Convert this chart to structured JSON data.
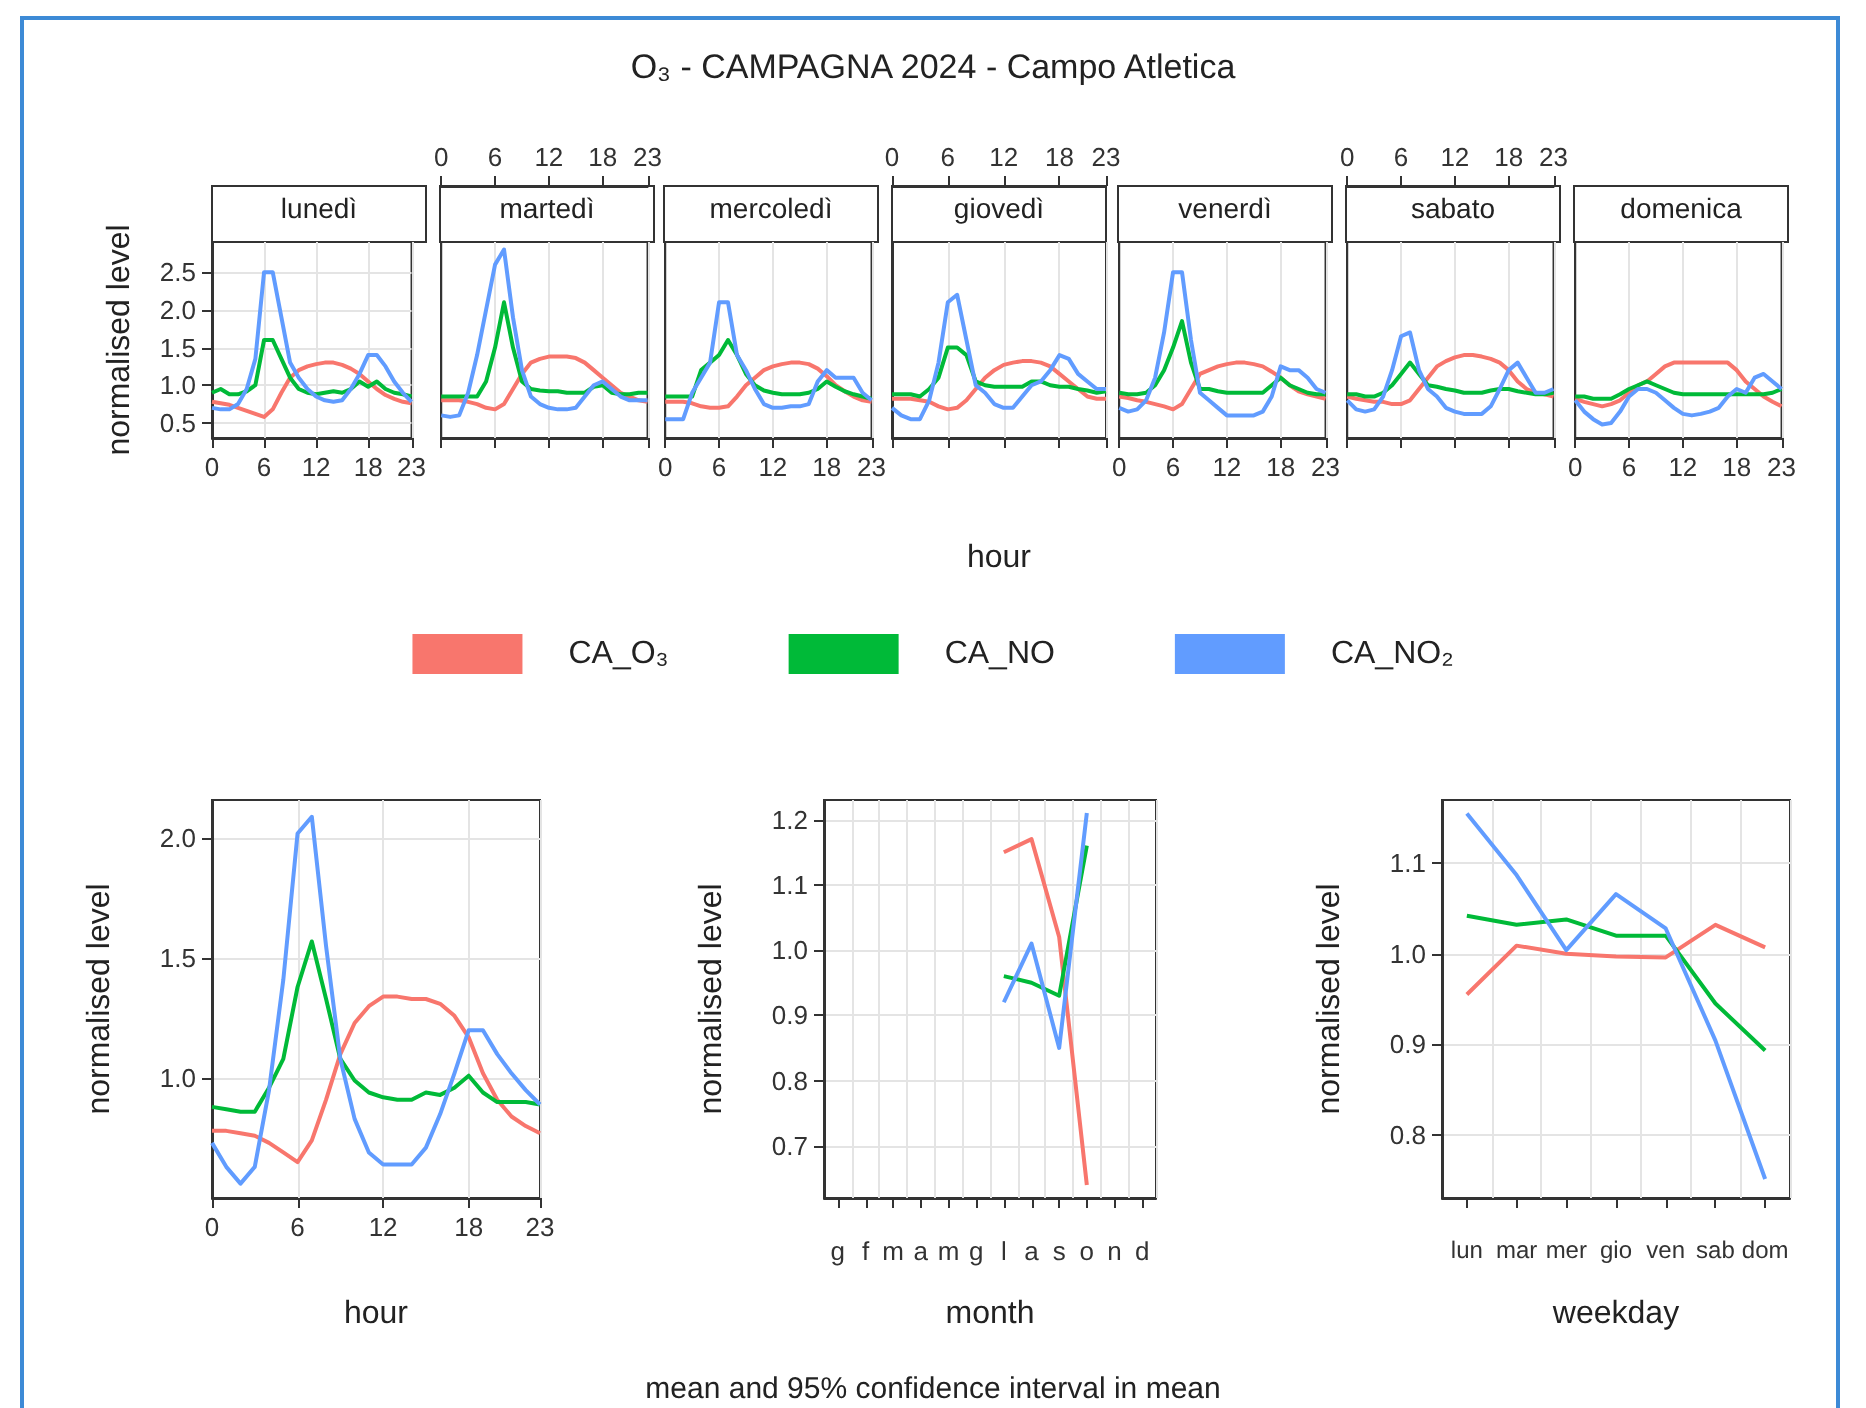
{
  "chart_data": [
    {
      "type": "other",
      "title": "O₃ - CAMPAGNA 2024 - Campo Atletica",
      "annotations": [
        "mean and 95% confidence interval in mean"
      ]
    },
    {
      "type": "line",
      "title": "lunedì",
      "ylabel": "normalised level",
      "x": [
        0,
        1,
        2,
        3,
        4,
        5,
        6,
        7,
        8,
        9,
        10,
        11,
        12,
        13,
        14,
        15,
        16,
        17,
        18,
        19,
        20,
        21,
        22,
        23
      ],
      "xlim": [
        0,
        23
      ],
      "xticks": [
        0,
        6,
        12,
        18,
        23
      ],
      "ylim": [
        0.3,
        2.9
      ],
      "yticks": [
        {
          "value": 0.5,
          "label": "0.5"
        },
        {
          "value": 1,
          "label": "1.0"
        },
        {
          "value": 1.5,
          "label": "1.5"
        },
        {
          "value": 2,
          "label": "2.0"
        },
        {
          "value": 2.5,
          "label": "2.5"
        }
      ],
      "grid": true,
      "series": [
        {
          "color": "#f8766d",
          "values": [
            0.78,
            0.76,
            0.74,
            0.7,
            0.66,
            0.62,
            0.58,
            0.68,
            0.9,
            1.1,
            1.2,
            1.25,
            1.28,
            1.3,
            1.3,
            1.27,
            1.22,
            1.15,
            1.05,
            0.95,
            0.87,
            0.82,
            0.78,
            0.76
          ]
        },
        {
          "color": "#00ba38",
          "values": [
            0.9,
            0.95,
            0.88,
            0.88,
            0.92,
            1.0,
            1.6,
            1.6,
            1.35,
            1.1,
            0.95,
            0.9,
            0.88,
            0.9,
            0.92,
            0.9,
            0.95,
            1.05,
            0.98,
            1.05,
            0.95,
            0.9,
            0.88,
            0.85
          ]
        },
        {
          "color": "#619cff",
          "values": [
            0.7,
            0.68,
            0.68,
            0.75,
            0.95,
            1.35,
            2.5,
            2.5,
            1.9,
            1.3,
            1.1,
            0.95,
            0.85,
            0.8,
            0.78,
            0.8,
            0.95,
            1.15,
            1.4,
            1.4,
            1.25,
            1.05,
            0.9,
            0.78
          ]
        }
      ]
    },
    {
      "type": "line",
      "title": "martedì",
      "x": [
        0,
        1,
        2,
        3,
        4,
        5,
        6,
        7,
        8,
        9,
        10,
        11,
        12,
        13,
        14,
        15,
        16,
        17,
        18,
        19,
        20,
        21,
        22,
        23
      ],
      "xlim": [
        0,
        23
      ],
      "xticks": [
        0,
        6,
        12,
        18,
        23
      ],
      "tick_labels": "x",
      "ylim": [
        0.3,
        2.9
      ],
      "grid": true,
      "series": [
        {
          "color": "#f8766d",
          "values": [
            0.8,
            0.8,
            0.8,
            0.78,
            0.75,
            0.7,
            0.68,
            0.75,
            0.95,
            1.15,
            1.3,
            1.35,
            1.38,
            1.38,
            1.38,
            1.36,
            1.3,
            1.2,
            1.1,
            1.0,
            0.9,
            0.85,
            0.8,
            0.78
          ]
        },
        {
          "color": "#00ba38",
          "values": [
            0.85,
            0.85,
            0.85,
            0.85,
            0.85,
            1.05,
            1.5,
            2.1,
            1.5,
            1.05,
            0.95,
            0.93,
            0.92,
            0.92,
            0.9,
            0.9,
            0.9,
            0.98,
            1.0,
            0.9,
            0.88,
            0.88,
            0.9,
            0.9
          ]
        },
        {
          "color": "#619cff",
          "values": [
            0.6,
            0.58,
            0.6,
            0.9,
            1.4,
            2.0,
            2.6,
            2.8,
            1.9,
            1.2,
            0.85,
            0.75,
            0.7,
            0.68,
            0.68,
            0.7,
            0.85,
            1.0,
            1.05,
            0.95,
            0.85,
            0.8,
            0.8,
            0.8
          ]
        }
      ]
    },
    {
      "type": "line",
      "title": "mercoledì",
      "x": [
        0,
        1,
        2,
        3,
        4,
        5,
        6,
        7,
        8,
        9,
        10,
        11,
        12,
        13,
        14,
        15,
        16,
        17,
        18,
        19,
        20,
        21,
        22,
        23
      ],
      "xlim": [
        0,
        23
      ],
      "xticks": [
        0,
        6,
        12,
        18,
        23
      ],
      "tick_labels": "x",
      "ylim": [
        0.3,
        2.9
      ],
      "grid": true,
      "series": [
        {
          "color": "#f8766d",
          "values": [
            0.78,
            0.78,
            0.78,
            0.76,
            0.72,
            0.7,
            0.7,
            0.72,
            0.85,
            1.0,
            1.1,
            1.2,
            1.25,
            1.28,
            1.3,
            1.3,
            1.28,
            1.22,
            1.12,
            1.0,
            0.92,
            0.85,
            0.8,
            0.78
          ]
        },
        {
          "color": "#00ba38",
          "values": [
            0.85,
            0.85,
            0.85,
            0.85,
            1.2,
            1.3,
            1.4,
            1.6,
            1.4,
            1.15,
            1.0,
            0.93,
            0.9,
            0.88,
            0.88,
            0.88,
            0.9,
            0.95,
            1.05,
            0.98,
            0.92,
            0.88,
            0.85,
            0.82
          ]
        },
        {
          "color": "#619cff",
          "values": [
            0.55,
            0.55,
            0.55,
            0.9,
            1.1,
            1.3,
            2.1,
            2.1,
            1.4,
            1.2,
            0.95,
            0.75,
            0.7,
            0.7,
            0.72,
            0.72,
            0.75,
            1.05,
            1.2,
            1.1,
            1.1,
            1.1,
            0.9,
            0.8
          ]
        }
      ]
    },
    {
      "type": "line",
      "title": "giovedì",
      "xlabel": "hour",
      "legend": "bottom",
      "x": [
        0,
        1,
        2,
        3,
        4,
        5,
        6,
        7,
        8,
        9,
        10,
        11,
        12,
        13,
        14,
        15,
        16,
        17,
        18,
        19,
        20,
        21,
        22,
        23
      ],
      "xlim": [
        0,
        23
      ],
      "xticks": [
        0,
        6,
        12,
        18,
        23
      ],
      "tick_labels": "x",
      "ylim": [
        0.3,
        2.9
      ],
      "grid": true,
      "series": [
        {
          "name": "CA_O₃",
          "color": "#f8766d",
          "values": [
            0.82,
            0.82,
            0.82,
            0.8,
            0.78,
            0.72,
            0.68,
            0.7,
            0.8,
            0.95,
            1.1,
            1.2,
            1.27,
            1.3,
            1.32,
            1.32,
            1.3,
            1.25,
            1.15,
            1.05,
            0.95,
            0.85,
            0.82,
            0.82
          ]
        },
        {
          "name": "CA_NO",
          "color": "#00ba38",
          "values": [
            0.88,
            0.88,
            0.88,
            0.85,
            0.95,
            1.1,
            1.5,
            1.5,
            1.4,
            1.05,
            1.0,
            0.98,
            0.98,
            0.98,
            0.98,
            1.05,
            1.05,
            1.0,
            0.98,
            0.98,
            0.95,
            0.93,
            0.9,
            0.92
          ]
        },
        {
          "name": "CA_NO₂",
          "color": "#619cff",
          "values": [
            0.7,
            0.6,
            0.55,
            0.55,
            0.8,
            1.3,
            2.1,
            2.2,
            1.6,
            1.0,
            0.9,
            0.75,
            0.7,
            0.7,
            0.85,
            1.0,
            1.05,
            1.2,
            1.4,
            1.35,
            1.15,
            1.05,
            0.95,
            0.95
          ]
        }
      ]
    },
    {
      "type": "line",
      "title": "venerdì",
      "x": [
        0,
        1,
        2,
        3,
        4,
        5,
        6,
        7,
        8,
        9,
        10,
        11,
        12,
        13,
        14,
        15,
        16,
        17,
        18,
        19,
        20,
        21,
        22,
        23
      ],
      "xlim": [
        0,
        23
      ],
      "xticks": [
        0,
        6,
        12,
        18,
        23
      ],
      "tick_labels": "x",
      "ylim": [
        0.3,
        2.9
      ],
      "grid": true,
      "series": [
        {
          "color": "#f8766d",
          "values": [
            0.85,
            0.83,
            0.8,
            0.78,
            0.75,
            0.72,
            0.68,
            0.75,
            0.95,
            1.15,
            1.2,
            1.25,
            1.28,
            1.3,
            1.3,
            1.28,
            1.25,
            1.18,
            1.1,
            1.0,
            0.92,
            0.88,
            0.85,
            0.82
          ]
        },
        {
          "color": "#00ba38",
          "values": [
            0.9,
            0.88,
            0.88,
            0.9,
            1.0,
            1.2,
            1.5,
            1.85,
            1.3,
            0.95,
            0.95,
            0.92,
            0.9,
            0.9,
            0.9,
            0.9,
            0.9,
            1.0,
            1.1,
            1.0,
            0.95,
            0.9,
            0.88,
            0.88
          ]
        },
        {
          "color": "#619cff",
          "values": [
            0.7,
            0.65,
            0.68,
            0.8,
            1.1,
            1.7,
            2.5,
            2.5,
            1.6,
            0.9,
            0.8,
            0.7,
            0.6,
            0.6,
            0.6,
            0.6,
            0.65,
            0.85,
            1.25,
            1.2,
            1.2,
            1.1,
            0.95,
            0.9
          ]
        }
      ]
    },
    {
      "type": "line",
      "title": "sabato",
      "x": [
        0,
        1,
        2,
        3,
        4,
        5,
        6,
        7,
        8,
        9,
        10,
        11,
        12,
        13,
        14,
        15,
        16,
        17,
        18,
        19,
        20,
        21,
        22,
        23
      ],
      "xlim": [
        0,
        23
      ],
      "xticks": [
        0,
        6,
        12,
        18,
        23
      ],
      "tick_labels": "x",
      "ylim": [
        0.3,
        2.9
      ],
      "grid": true,
      "series": [
        {
          "color": "#f8766d",
          "values": [
            0.85,
            0.82,
            0.8,
            0.78,
            0.78,
            0.75,
            0.75,
            0.8,
            0.95,
            1.1,
            1.25,
            1.32,
            1.37,
            1.4,
            1.4,
            1.38,
            1.35,
            1.3,
            1.2,
            1.05,
            0.95,
            0.9,
            0.88,
            0.85
          ]
        },
        {
          "color": "#00ba38",
          "values": [
            0.88,
            0.88,
            0.85,
            0.85,
            0.9,
            1.0,
            1.15,
            1.3,
            1.15,
            1.0,
            0.98,
            0.95,
            0.93,
            0.9,
            0.9,
            0.9,
            0.93,
            0.95,
            0.95,
            0.92,
            0.9,
            0.88,
            0.88,
            0.9
          ]
        },
        {
          "color": "#619cff",
          "values": [
            0.8,
            0.68,
            0.65,
            0.68,
            0.85,
            1.2,
            1.65,
            1.7,
            1.2,
            0.95,
            0.85,
            0.7,
            0.65,
            0.62,
            0.62,
            0.62,
            0.72,
            0.95,
            1.2,
            1.3,
            1.1,
            0.9,
            0.9,
            0.95
          ]
        }
      ]
    },
    {
      "type": "line",
      "title": "domenica",
      "x": [
        0,
        1,
        2,
        3,
        4,
        5,
        6,
        7,
        8,
        9,
        10,
        11,
        12,
        13,
        14,
        15,
        16,
        17,
        18,
        19,
        20,
        21,
        22,
        23
      ],
      "xlim": [
        0,
        23
      ],
      "xticks": [
        0,
        6,
        12,
        18,
        23
      ],
      "tick_labels": "x",
      "ylim": [
        0.3,
        2.9
      ],
      "grid": true,
      "series": [
        {
          "color": "#f8766d",
          "values": [
            0.82,
            0.78,
            0.75,
            0.72,
            0.75,
            0.8,
            0.9,
            1.0,
            1.05,
            1.15,
            1.25,
            1.3,
            1.3,
            1.3,
            1.3,
            1.3,
            1.3,
            1.3,
            1.2,
            1.05,
            0.95,
            0.85,
            0.78,
            0.72
          ]
        },
        {
          "color": "#00ba38",
          "values": [
            0.85,
            0.85,
            0.82,
            0.82,
            0.82,
            0.88,
            0.95,
            1.0,
            1.05,
            1.0,
            0.95,
            0.9,
            0.88,
            0.88,
            0.88,
            0.88,
            0.88,
            0.88,
            0.88,
            0.88,
            0.88,
            0.88,
            0.9,
            0.95
          ]
        },
        {
          "color": "#619cff",
          "values": [
            0.8,
            0.65,
            0.55,
            0.48,
            0.5,
            0.65,
            0.85,
            0.95,
            0.95,
            0.9,
            0.8,
            0.7,
            0.62,
            0.6,
            0.62,
            0.65,
            0.7,
            0.85,
            0.95,
            0.9,
            1.1,
            1.15,
            1.05,
            0.95
          ]
        }
      ]
    },
    {
      "type": "line",
      "xlabel": "hour",
      "ylabel": "normalised level",
      "x": [
        0,
        1,
        2,
        3,
        4,
        5,
        6,
        7,
        8,
        9,
        10,
        11,
        12,
        13,
        14,
        15,
        16,
        17,
        18,
        19,
        20,
        21,
        22,
        23
      ],
      "xlim": [
        0,
        23
      ],
      "xticks": [
        0,
        6,
        12,
        18,
        23
      ],
      "ylim": [
        0.5,
        2.16
      ],
      "yticks": [
        {
          "value": 1,
          "label": "1.0"
        },
        {
          "value": 1.5,
          "label": "1.5"
        },
        {
          "value": 2,
          "label": "2.0"
        }
      ],
      "grid": true,
      "series": [
        {
          "color": "#f8766d",
          "values": [
            0.78,
            0.78,
            0.77,
            0.76,
            0.73,
            0.69,
            0.65,
            0.74,
            0.91,
            1.1,
            1.23,
            1.3,
            1.34,
            1.34,
            1.33,
            1.33,
            1.31,
            1.26,
            1.17,
            1.02,
            0.91,
            0.84,
            0.8,
            0.77
          ]
        },
        {
          "color": "#00ba38",
          "values": [
            0.88,
            0.87,
            0.86,
            0.86,
            0.96,
            1.08,
            1.38,
            1.57,
            1.33,
            1.08,
            0.99,
            0.94,
            0.92,
            0.91,
            0.91,
            0.94,
            0.93,
            0.96,
            1.01,
            0.94,
            0.9,
            0.9,
            0.9,
            0.89
          ]
        },
        {
          "color": "#619cff",
          "values": [
            0.73,
            0.63,
            0.56,
            0.63,
            0.95,
            1.41,
            2.02,
            2.09,
            1.55,
            1.08,
            0.83,
            0.69,
            0.64,
            0.64,
            0.64,
            0.71,
            0.85,
            1.02,
            1.2,
            1.2,
            1.1,
            1.02,
            0.95,
            0.89
          ]
        }
      ]
    },
    {
      "type": "line",
      "xlabel": "month",
      "ylabel": "normalised level",
      "categories": [
        "g",
        "f",
        "m",
        "a",
        "m",
        "g",
        "l",
        "a",
        "s",
        "o",
        "n",
        "d"
      ],
      "ylim": [
        0.62,
        1.23
      ],
      "yticks": [
        0.7,
        0.8,
        0.9,
        {
          "value": 1,
          "label": "1.0"
        },
        1.1,
        1.2
      ],
      "grid": true,
      "series": [
        {
          "color": "#f8766d",
          "values": [
            null,
            null,
            null,
            null,
            null,
            null,
            1.15,
            1.17,
            1.02,
            0.64,
            null,
            null
          ]
        },
        {
          "color": "#00ba38",
          "values": [
            null,
            null,
            null,
            null,
            null,
            null,
            0.96,
            0.95,
            0.93,
            1.16,
            null,
            null
          ]
        },
        {
          "color": "#619cff",
          "values": [
            null,
            null,
            null,
            null,
            null,
            null,
            0.92,
            1.01,
            0.85,
            1.21,
            null,
            null
          ]
        }
      ]
    },
    {
      "type": "line",
      "xlabel": "weekday",
      "ylabel": "normalised level",
      "categories": [
        "lun",
        "mar",
        "mer",
        "gio",
        "ven",
        "sab",
        "dom"
      ],
      "ylim": [
        0.73,
        1.17
      ],
      "yticks": [
        0.8,
        0.9,
        {
          "value": 1,
          "label": "1.0"
        },
        1.1
      ],
      "grid": true,
      "series": [
        {
          "color": "#f8766d",
          "values": [
            0.955,
            1.009,
            1.0,
            0.997,
            0.996,
            1.032,
            1.007
          ]
        },
        {
          "color": "#00ba38",
          "values": [
            1.042,
            1.032,
            1.038,
            1.02,
            1.02,
            0.945,
            0.893
          ]
        },
        {
          "color": "#619cff",
          "values": [
            1.155,
            1.087,
            1.004,
            1.066,
            1.028,
            0.904,
            0.751
          ]
        }
      ]
    }
  ]
}
